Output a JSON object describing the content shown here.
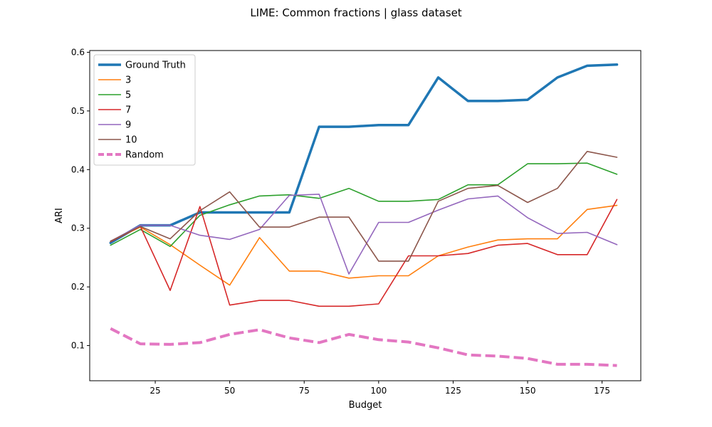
{
  "chart_data": {
    "type": "line",
    "title": "LIME: Common fractions | glass dataset",
    "xlabel": "Budget",
    "ylabel": "ARI",
    "xlim": [
      3,
      188
    ],
    "ylim": [
      0.04,
      0.603
    ],
    "xticks": [
      25,
      50,
      75,
      100,
      125,
      150,
      175
    ],
    "yticks": [
      0.1,
      0.2,
      0.3,
      0.4,
      0.5,
      0.6
    ],
    "x": [
      10,
      20,
      30,
      40,
      50,
      60,
      70,
      80,
      90,
      100,
      110,
      120,
      130,
      140,
      150,
      160,
      170,
      180
    ],
    "grid": false,
    "legend_position": "upper-left",
    "series": [
      {
        "name": "Ground Truth",
        "color": "#1f77b4",
        "width": 3.5,
        "dashed": false,
        "values": [
          0.275,
          0.305,
          0.305,
          0.327,
          0.327,
          0.327,
          0.327,
          0.473,
          0.473,
          0.476,
          0.476,
          0.557,
          0.517,
          0.517,
          0.519,
          0.557,
          0.577,
          0.579
        ]
      },
      {
        "name": "3",
        "color": "#ff7f0e",
        "width": 1.6,
        "dashed": false,
        "values": [
          0.278,
          0.302,
          0.272,
          0.237,
          0.203,
          0.284,
          0.227,
          0.227,
          0.215,
          0.219,
          0.219,
          0.253,
          0.268,
          0.28,
          0.282,
          0.282,
          0.332,
          0.339
        ]
      },
      {
        "name": "5",
        "color": "#2ca02c",
        "width": 1.6,
        "dashed": false,
        "values": [
          0.271,
          0.298,
          0.269,
          0.322,
          0.34,
          0.355,
          0.357,
          0.351,
          0.368,
          0.346,
          0.346,
          0.349,
          0.374,
          0.374,
          0.41,
          0.41,
          0.411,
          0.392
        ]
      },
      {
        "name": "7",
        "color": "#d62728",
        "width": 1.6,
        "dashed": false,
        "values": [
          0.277,
          0.303,
          0.194,
          0.337,
          0.169,
          0.177,
          0.177,
          0.167,
          0.167,
          0.171,
          0.253,
          0.253,
          0.257,
          0.271,
          0.274,
          0.255,
          0.255,
          0.349
        ]
      },
      {
        "name": "9",
        "color": "#9467bd",
        "width": 1.6,
        "dashed": false,
        "values": [
          0.278,
          0.305,
          0.305,
          0.288,
          0.281,
          0.298,
          0.356,
          0.358,
          0.222,
          0.31,
          0.31,
          0.331,
          0.35,
          0.355,
          0.318,
          0.291,
          0.293,
          0.272
        ]
      },
      {
        "name": "10",
        "color": "#8c564b",
        "width": 1.6,
        "dashed": false,
        "values": [
          0.278,
          0.303,
          0.282,
          0.33,
          0.362,
          0.302,
          0.302,
          0.319,
          0.319,
          0.244,
          0.244,
          0.346,
          0.368,
          0.373,
          0.344,
          0.368,
          0.431,
          0.421
        ]
      },
      {
        "name": "Random",
        "color": "#e377c2",
        "width": 4,
        "dashed": true,
        "values": [
          0.129,
          0.103,
          0.102,
          0.105,
          0.119,
          0.127,
          0.113,
          0.105,
          0.119,
          0.11,
          0.106,
          0.096,
          0.084,
          0.082,
          0.078,
          0.068,
          0.068,
          0.066
        ]
      }
    ]
  }
}
